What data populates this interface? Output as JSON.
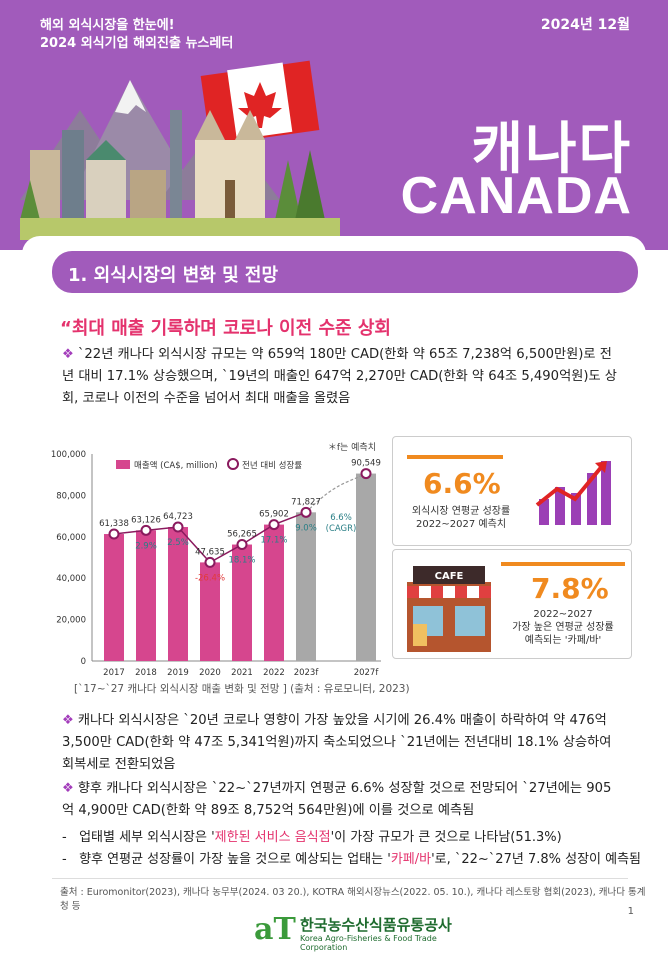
{
  "header": {
    "line1": "해외 외식시장을 한눈에!",
    "line2": "2024 외식기업 해외진출 뉴스레터",
    "date": "2024년 12월",
    "country_ko": "캐나다",
    "country_en": "CANADA"
  },
  "section": {
    "title": "1.  외식시장의 변화 및 전망"
  },
  "quote_title": "“최대 매출 기록하며 코로나 이전 수준 상회",
  "paragraphs": {
    "p1": "`22년 캐나다 외식시장 규모는 약 659억 180만 CAD(한화 약 65조 7,238억 6,500만원)로 전년 대비 17.1% 상승했으며, `19년의 매출인 647억 2,270만 CAD(한화 약 64조 5,490억원)도 상회, 코로나 이전의 수준을 넘어서 최대 매출을 올렸음",
    "p2": "캐나다 외식시장은 `20년 코로나 영향이 가장 높았을 시기에 26.4% 매출이 하락하여 약 476억 3,500만 CAD(한화 약 47조 5,341억원)까지 축소되었으나 `21년에는 전년대비 18.1% 상승하여 회복세로 전환되었음",
    "p3": "향후 캐나다 외식시장은 `22~`27년까지 연평균 6.6% 성장할 것으로 전망되어 `27년에는 905억 4,900만 CAD(한화 약 89조 8,752억 564만원)에 이를 것으로 예측됨",
    "d1_pre": "업태별 세부 외식시장은 '",
    "d1_hl": "제한된 서비스 음식점",
    "d1_post": "'이 가장 규모가 큰 것으로 나타남(51.3%)",
    "d2_pre": "향후 연평균 성장률이 가장 높을 것으로 예상되는 업태는 '",
    "d2_hl": "카페/바",
    "d2_post": "'로, `22~`27년 7.8% 성장이 예측됨"
  },
  "chart_data": {
    "type": "bar",
    "note": "＊f는 예측치",
    "categories": [
      "2017",
      "2018",
      "2019",
      "2020",
      "2021",
      "2022",
      "2023f",
      "2027f"
    ],
    "series": [
      {
        "name": "매출액 (CA$, million)",
        "values": [
          61338,
          63126,
          64723,
          47635,
          56265,
          65902,
          71827,
          90549
        ]
      },
      {
        "name": "전년 대비 성장률",
        "values": [
          null,
          2.9,
          2.5,
          -26.4,
          18.1,
          17.1,
          9.0,
          null
        ]
      }
    ],
    "value_labels": [
      "61,338",
      "63,126",
      "64,723",
      "47,635",
      "56,265",
      "65,902",
      "71,827",
      "90,549"
    ],
    "growth_labels": [
      "",
      "2.9%",
      "2.5%",
      "-26.4%",
      "18.1%",
      "17.1%",
      "9.0%",
      ""
    ],
    "cagr_label": [
      "6.6%",
      "(CAGR)"
    ],
    "yticks": [
      "0",
      "20,000",
      "40,000",
      "60,000",
      "80,000",
      "100,000"
    ],
    "ylim": [
      0,
      100000
    ],
    "colors": {
      "actual": "#d6468e",
      "forecast": "#a8a8a8",
      "growth_text": "#2a7f86",
      "negative": "#e23a3a"
    },
    "source": "[`17~`27 캐나다 외식시장 매출 변화 및 전망 ] (출처 : 유로모니터, 2023)"
  },
  "stats": [
    {
      "value": "6.6%",
      "label1": "외식시장 연평균 성장률",
      "label2": "2022~2027 예측치"
    },
    {
      "value": "7.8%",
      "label1": "2022~2027",
      "label2": "가장 높은 연평균 성장률",
      "label3": "예측되는 '카페/바'"
    }
  ],
  "footnote": "출처 : Euromonitor(2023), 캐나다 농무부(2024. 03 20.), KOTRA 해외시장뉴스(2022. 05. 10.), 캐나다 레스토랑 협회(2023), 캐나다 통계청 등",
  "logo": {
    "mark": "aT",
    "ko": "한국농수산식품유통공사",
    "en": "Korea Agro-Fisheries & Food Trade Corporation"
  },
  "page_number": "1",
  "cafe_sign": "CAFE"
}
